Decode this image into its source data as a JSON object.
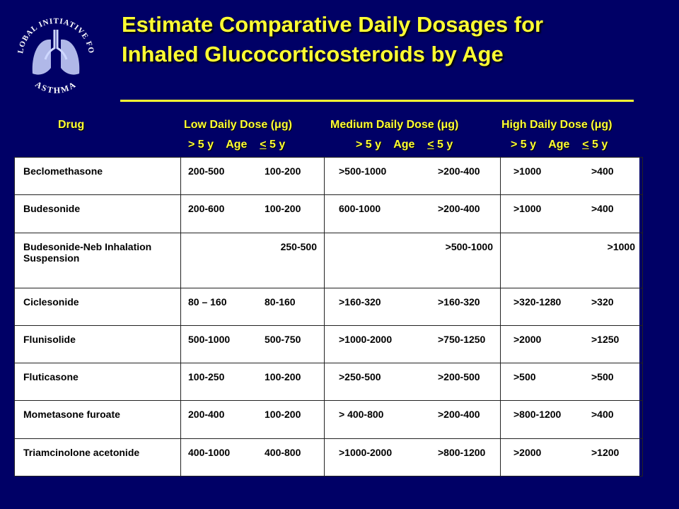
{
  "logo": {
    "top_text": "GLOBAL INITIATIVE FOR",
    "bottom_text": "ASTHMA",
    "icon": "lungs-icon"
  },
  "title": {
    "line1": "Estimate Comparative Daily Dosages for",
    "line2": "Inhaled Glucocorticosteroids by Age"
  },
  "header": {
    "drug": "Drug",
    "low": "Low Daily Dose (μg)",
    "medium": "Medium Daily Dose (μg)",
    "high": "High Daily Dose (μg)",
    "gt5": "> 5 y",
    "age": "Age",
    "lt5": "< 5 y"
  },
  "colors": {
    "background": "#000066",
    "title": "#ffff33",
    "table_bg": "#ffffff"
  },
  "rows": [
    {
      "drug": "Beclomethasone",
      "low": [
        "200-500",
        "100-200"
      ],
      "medium": [
        ">500-1000",
        ">200-400"
      ],
      "high": [
        ">1000",
        ">400"
      ]
    },
    {
      "drug": "Budesonide",
      "low": [
        "200-600",
        "100-200"
      ],
      "medium": [
        "600-1000",
        ">200-400"
      ],
      "high": [
        ">1000",
        ">400"
      ]
    },
    {
      "drug": "Budesonide-Neb Inhalation Suspension",
      "low_combined": "250-500",
      "medium_combined": ">500-1000",
      "high_combined": ">1000"
    },
    {
      "drug": "Ciclesonide",
      "low": [
        "80 – 160",
        "80-160"
      ],
      "medium": [
        ">160-320",
        ">160-320"
      ],
      "high": [
        ">320-1280",
        ">320"
      ]
    },
    {
      "drug": "Flunisolide",
      "low": [
        "500-1000",
        "500-750"
      ],
      "medium": [
        ">1000-2000",
        ">750-1250"
      ],
      "high": [
        ">2000",
        ">1250"
      ]
    },
    {
      "drug": "Fluticasone",
      "low": [
        "100-250",
        "100-200"
      ],
      "medium": [
        ">250-500",
        ">200-500"
      ],
      "high": [
        ">500",
        ">500"
      ]
    },
    {
      "drug": "Mometasone furoate",
      "low": [
        "200-400",
        "100-200"
      ],
      "medium": [
        "> 400-800",
        ">200-400"
      ],
      "high": [
        ">800-1200",
        ">400"
      ]
    },
    {
      "drug": "Triamcinolone acetonide",
      "low": [
        "400-1000",
        "400-800"
      ],
      "medium": [
        ">1000-2000",
        ">800-1200"
      ],
      "high": [
        ">2000",
        ">1200"
      ]
    }
  ]
}
